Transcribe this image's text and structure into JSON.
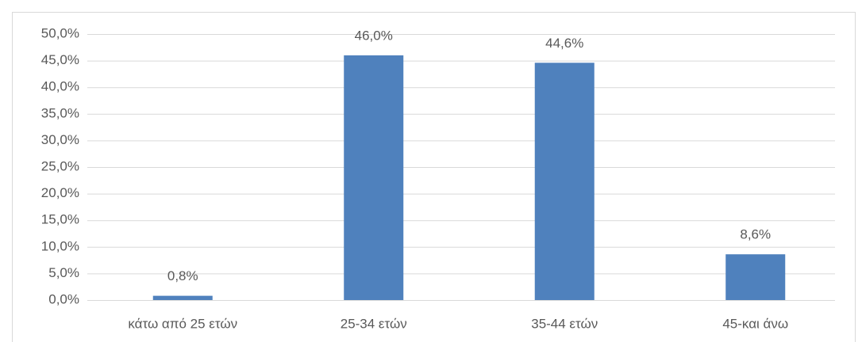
{
  "chart_data": {
    "type": "bar",
    "categories": [
      "κάτω από 25 ετών",
      "25-34 ετών",
      "35-44 ετών",
      "45-και άνω"
    ],
    "values": [
      0.8,
      46.0,
      44.6,
      8.6
    ],
    "value_labels": [
      "0,8%",
      "46,0%",
      "44,6%",
      "8,6%"
    ],
    "color": "#4f81bd",
    "ylim": [
      0,
      50
    ],
    "yticks": [
      {
        "value": 0,
        "label": "0,0%"
      },
      {
        "value": 5,
        "label": "5,0%"
      },
      {
        "value": 10,
        "label": "10,0%"
      },
      {
        "value": 15,
        "label": "15,0%"
      },
      {
        "value": 20,
        "label": "20,0%"
      },
      {
        "value": 25,
        "label": "25,0%"
      },
      {
        "value": 30,
        "label": "30,0%"
      },
      {
        "value": 35,
        "label": "35,0%"
      },
      {
        "value": 40,
        "label": "40,0%"
      },
      {
        "value": 45,
        "label": "45,0%"
      },
      {
        "value": 50,
        "label": "50,0%"
      }
    ],
    "grid": true
  }
}
